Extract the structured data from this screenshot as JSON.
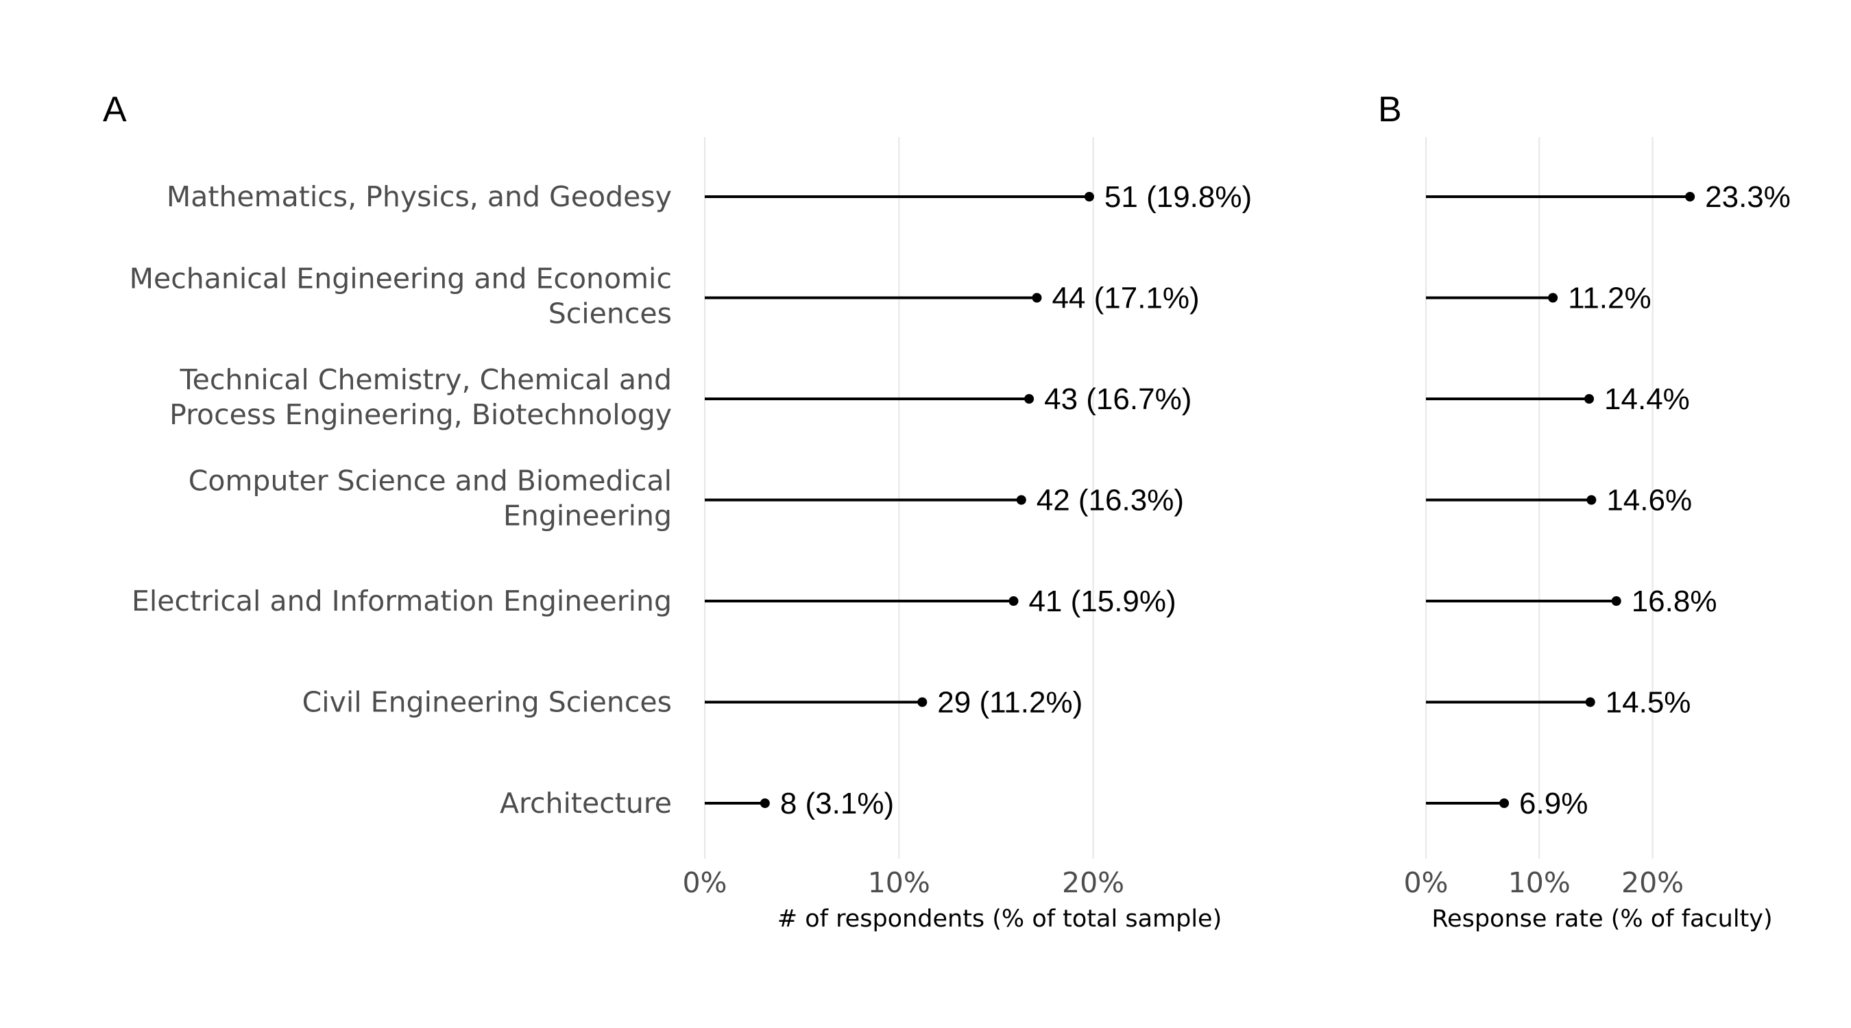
{
  "chart_data": [
    {
      "type": "lollipop",
      "panel": "A",
      "xlabel": "# of respondents (% of total sample)",
      "xlim": [
        0,
        30
      ],
      "xticks": [
        0,
        10,
        20
      ],
      "xtick_labels": [
        "0%",
        "10%",
        "20%"
      ],
      "categories": [
        [
          "Mathematics, Physics, and Geodesy"
        ],
        [
          "Mechanical Engineering and Economic",
          "Sciences"
        ],
        [
          "Technical Chemistry, Chemical and",
          "Process Engineering, Biotechnology"
        ],
        [
          "Computer Science and Biomedical",
          "Engineering"
        ],
        [
          "Electrical and Information Engineering"
        ],
        [
          "Civil Engineering Sciences"
        ],
        [
          "Architecture"
        ]
      ],
      "values": [
        19.8,
        17.1,
        16.7,
        16.3,
        15.9,
        11.2,
        3.1
      ],
      "counts": [
        51,
        44,
        43,
        42,
        41,
        29,
        8
      ],
      "value_labels": [
        "51 (19.8%)",
        "44 (17.1%)",
        "43 (16.7%)",
        "42 (16.3%)",
        "41 (15.9%)",
        "29 (11.2%)",
        "8 (3.1%)"
      ],
      "grid": true
    },
    {
      "type": "lollipop",
      "panel": "B",
      "xlabel": "Response rate (% of faculty)",
      "xlim": [
        0,
        30
      ],
      "xticks": [
        0,
        10,
        20
      ],
      "xtick_labels": [
        "0%",
        "10%",
        "20%"
      ],
      "values": [
        23.3,
        11.2,
        14.4,
        14.6,
        16.8,
        14.5,
        6.9
      ],
      "value_labels": [
        "23.3%",
        "11.2%",
        "14.4%",
        "14.6%",
        "16.8%",
        "14.5%",
        "6.9%"
      ],
      "grid": true
    }
  ]
}
